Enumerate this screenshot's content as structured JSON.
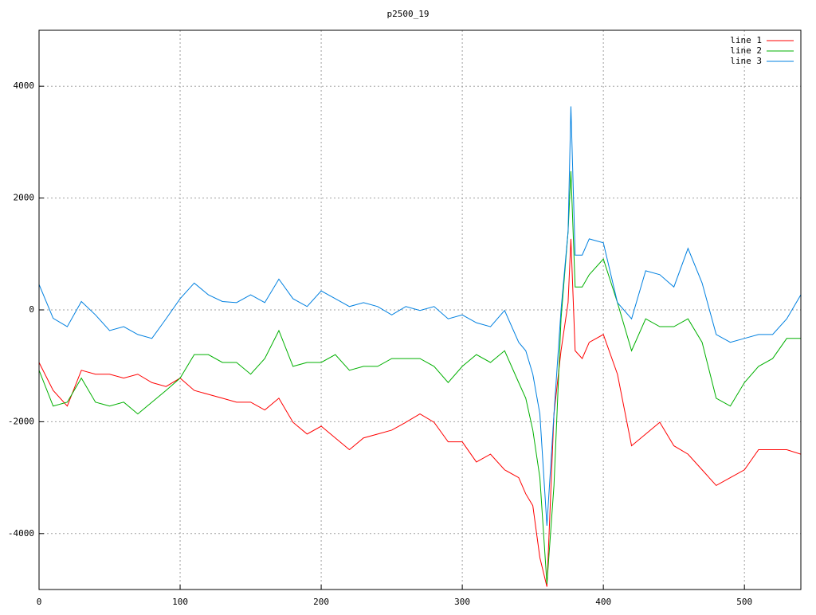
{
  "chart_data": {
    "type": "line",
    "title": "p2500_19",
    "x": [
      0,
      10,
      20,
      30,
      40,
      50,
      60,
      70,
      80,
      90,
      100,
      110,
      120,
      130,
      140,
      150,
      160,
      170,
      180,
      190,
      200,
      210,
      220,
      230,
      240,
      250,
      260,
      270,
      280,
      290,
      300,
      310,
      320,
      330,
      340,
      345,
      350,
      355,
      360,
      365,
      370,
      375,
      377,
      380,
      385,
      390,
      400,
      410,
      420,
      430,
      440,
      450,
      460,
      470,
      480,
      490,
      500,
      510,
      520,
      530,
      540
    ],
    "series": [
      {
        "name": "line 1",
        "color": "#ff0000",
        "values": [
          -940,
          -1440,
          -1720,
          -1080,
          -1150,
          -1150,
          -1220,
          -1150,
          -1300,
          -1370,
          -1220,
          -1440,
          -1510,
          -1580,
          -1650,
          -1650,
          -1790,
          -1580,
          -2010,
          -2220,
          -2080,
          -2290,
          -2500,
          -2290,
          -2220,
          -2150,
          -2010,
          -1860,
          -2010,
          -2360,
          -2360,
          -2720,
          -2580,
          -2860,
          -3000,
          -3290,
          -3500,
          -4430,
          -4950,
          -1860,
          -730,
          130,
          1270,
          -730,
          -870,
          -580,
          -440,
          -1150,
          -2430,
          -2220,
          -2010,
          -2430,
          -2580,
          -2860,
          -3140,
          -3000,
          -2860,
          -2500,
          -2500,
          -2500,
          -2580
        ]
      },
      {
        "name": "line 2",
        "color": "#00b000",
        "values": [
          -1080,
          -1720,
          -1650,
          -1220,
          -1650,
          -1720,
          -1650,
          -1860,
          -1650,
          -1440,
          -1220,
          -800,
          -800,
          -940,
          -940,
          -1150,
          -870,
          -370,
          -1010,
          -940,
          -940,
          -800,
          -1080,
          -1010,
          -1010,
          -870,
          -870,
          -870,
          -1010,
          -1300,
          -1010,
          -800,
          -940,
          -730,
          -1300,
          -1580,
          -2150,
          -3000,
          -4900,
          -3140,
          -160,
          1400,
          2480,
          410,
          410,
          630,
          910,
          130,
          -730,
          -160,
          -300,
          -300,
          -160,
          -580,
          -1580,
          -1720,
          -1300,
          -1010,
          -870,
          -510,
          -510
        ]
      },
      {
        "name": "line 3",
        "color": "#0080e0",
        "values": [
          455,
          -150,
          -300,
          150,
          -90,
          -370,
          -300,
          -440,
          -510,
          -160,
          200,
          480,
          270,
          150,
          130,
          270,
          130,
          550,
          200,
          60,
          340,
          200,
          60,
          130,
          60,
          -90,
          60,
          -10,
          60,
          -160,
          -90,
          -230,
          -300,
          -10,
          -580,
          -730,
          -1150,
          -1860,
          -3860,
          -1860,
          0,
          1400,
          3640,
          980,
          980,
          1270,
          1200,
          130,
          -160,
          700,
          630,
          410,
          1100,
          480,
          -440,
          -580,
          -510,
          -440,
          -440,
          -160,
          270
        ]
      }
    ],
    "xlim": [
      0,
      540
    ],
    "ylim": [
      -5000,
      5000
    ],
    "xticks": [
      0,
      100,
      200,
      300,
      400,
      500
    ],
    "yticks": [
      -4000,
      -2000,
      0,
      2000,
      4000
    ],
    "grid": true,
    "legend": "top-right"
  }
}
